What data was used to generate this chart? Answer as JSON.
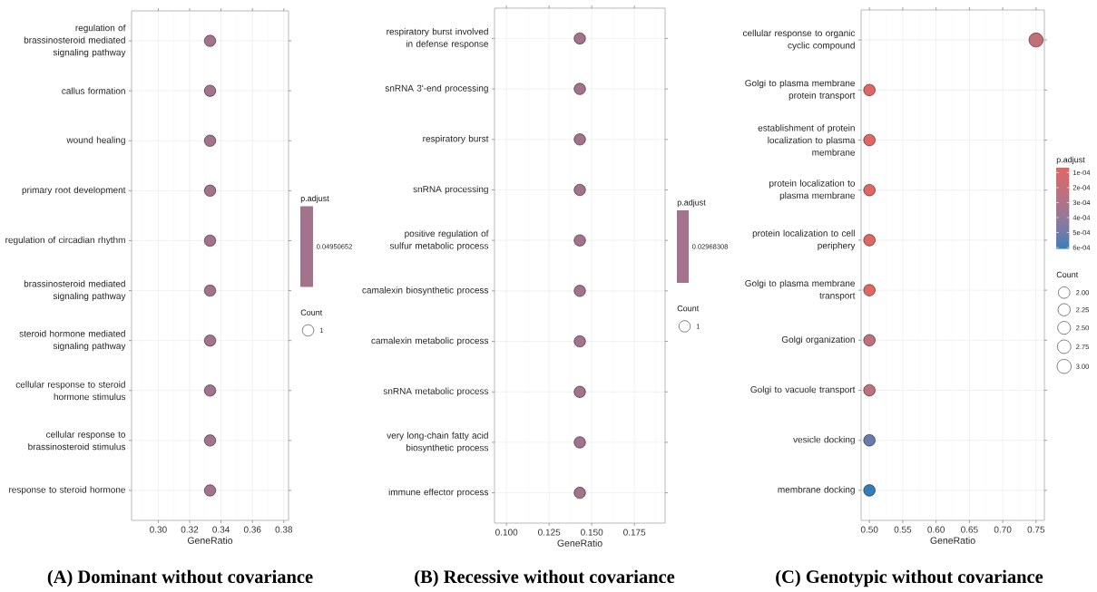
{
  "chart_data": [
    {
      "type": "bubble",
      "orientation": "horizontal",
      "title": "(A) Dominant without covariance",
      "xlabel": "GeneRatio",
      "clabel": "p.adjust",
      "legend_title": "Count",
      "categories": [
        "regulation of\nbrassinosteroid mediated\nsignaling pathway",
        "callus formation",
        "wound healing",
        "primary root development",
        "regulation of circadian rhythm",
        "brassinosteroid mediated\nsignaling pathway",
        "steroid hormone mediated\nsignaling pathway",
        "cellular response to steroid\nhormone stimulus",
        "cellular response to\nbrassinosteroid stimulus",
        "response to steroid hormone"
      ],
      "series": [
        {
          "name": "0.04950652",
          "color": "#a3728c",
          "values": [
            0.333,
            0.333,
            0.333,
            0.333,
            0.333,
            0.333,
            0.333,
            0.333,
            0.333,
            0.333
          ],
          "sizes": [
            1,
            1,
            1,
            1,
            1,
            1,
            1,
            1,
            1,
            1
          ]
        }
      ],
      "size_legend": [
        1
      ],
      "xlim": [
        0.283,
        0.383
      ],
      "xticks": [
        {
          "value": 0.3,
          "label": "0.30"
        },
        0.32,
        0.34,
        0.36,
        0.38
      ],
      "grid": true,
      "legend": "right"
    },
    {
      "type": "bubble",
      "orientation": "horizontal",
      "title": "(B) Recessive without covariance",
      "xlabel": "GeneRatio",
      "clabel": "p.adjust",
      "legend_title": "Count",
      "categories": [
        "respiratory burst involved\nin defense response",
        "snRNA 3'-end processing",
        "respiratory burst",
        "snRNA processing",
        "positive regulation of\nsulfur metabolic process",
        "camalexin biosynthetic process",
        "camalexin metabolic process",
        "snRNA metabolic process",
        "very long-chain fatty acid\nbiosynthetic process",
        "immune effector process"
      ],
      "series": [
        {
          "name": "0.02968308",
          "color": "#a3728c",
          "values": [
            0.143,
            0.143,
            0.143,
            0.143,
            0.143,
            0.143,
            0.143,
            0.143,
            0.143,
            0.143
          ],
          "sizes": [
            1,
            1,
            1,
            1,
            1,
            1,
            1,
            1,
            1,
            1
          ]
        }
      ],
      "size_legend": [
        1
      ],
      "xlim": [
        0.093,
        0.193
      ],
      "xticks": [
        {
          "value": 0.1,
          "label": "0.100"
        },
        0.125,
        {
          "value": 0.15,
          "label": "0.150"
        },
        0.175
      ],
      "grid": true,
      "legend": "right"
    },
    {
      "type": "bubble",
      "orientation": "horizontal",
      "title": "(C) Genotypic without covariance",
      "xlabel": "GeneRatio",
      "clabel": "p.adjust",
      "legend_title": "Count",
      "categories": [
        "cellular response to organic\ncyclic compound",
        "Golgi to plasma membrane\nprotein transport",
        "establishment of protein\nlocalization to plasma\nmembrane",
        "protein localization to\nplasma membrane",
        "protein localization to cell\nperiphery",
        "Golgi to plasma membrane\ntransport",
        "Golgi organization",
        "Golgi to vacuole transport",
        "vesicle docking",
        "membrane docking"
      ],
      "values": [
        0.75,
        0.5,
        0.5,
        0.5,
        0.5,
        0.5,
        0.5,
        0.5,
        0.5,
        0.5
      ],
      "sizes": [
        3,
        2,
        2,
        2,
        2,
        2,
        2,
        2,
        2,
        2
      ],
      "size_legend": [
        {
          "value": 2,
          "label": "2.00"
        },
        2.25,
        {
          "value": 2.5,
          "label": "2.50"
        },
        2.75,
        {
          "value": 3,
          "label": "3.00"
        }
      ],
      "cvalues": [
        0.0002,
        6.6e-05,
        6.6e-05,
        6.6e-05,
        6.6e-05,
        6.6e-05,
        0.00022,
        0.00022,
        0.00052,
        0.00061
      ],
      "clim": [
        0.00061,
        6.6e-05
      ],
      "cticks": [
        {
          "value": 0.0001,
          "label": "1e-04"
        },
        {
          "value": 0.0002,
          "label": "2e-04"
        },
        {
          "value": 0.0003,
          "label": "3e-04"
        },
        {
          "value": 0.0004,
          "label": "4e-04"
        },
        {
          "value": 0.0005,
          "label": "5e-04"
        },
        {
          "value": 0.0006,
          "label": "6e-04"
        }
      ],
      "xlim": [
        0.4875,
        0.7625
      ],
      "xticks": [
        {
          "value": 0.5,
          "label": "0.50"
        },
        0.55,
        {
          "value": 0.6,
          "label": "0.60"
        },
        0.65,
        {
          "value": 0.7,
          "label": "0.70"
        },
        0.75
      ],
      "grid": true
    }
  ]
}
